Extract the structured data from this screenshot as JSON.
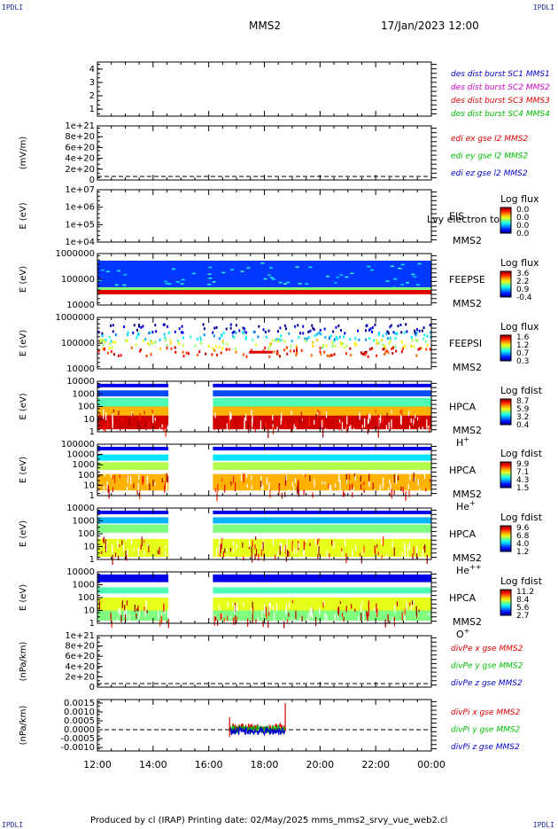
{
  "header": {
    "corner_label": "IPDLI",
    "spacecraft": "MMS2",
    "datetime": "17/Jan/2023 12:00"
  },
  "footer": {
    "text": "Produced by cl (IRAP)   Printing date: 02/May/2025   mms_mms2_srvy_vue_web2.cl"
  },
  "colors": {
    "blue": "#0000cc",
    "magenta": "#cc00cc",
    "red": "#dd0000",
    "green": "#00bb00"
  },
  "chart_data": [
    {
      "type": "line",
      "panel": "burst-flags",
      "ylabel": "",
      "yticks": [
        "1",
        "2",
        "3",
        "4"
      ],
      "legend": [
        {
          "text": "des dist burst SC1 MMS1",
          "color": "#0000cc"
        },
        {
          "text": "des dist burst SC2 MMS2",
          "color": "#cc00cc"
        },
        {
          "text": "des dist burst SC3 MMS3",
          "color": "#dd0000"
        },
        {
          "text": "des dist burst SC4 MMS4",
          "color": "#00bb00"
        }
      ]
    },
    {
      "type": "line",
      "panel": "edi-efield",
      "ylabel": "(mV/m)",
      "yticks": [
        "0",
        "2e+20",
        "4e+20",
        "6e+20",
        "8e+20",
        "1e+21"
      ],
      "dashed_zero": true,
      "legend": [
        {
          "text": "edi ex gse l2 MMS2",
          "color": "#dd0000"
        },
        {
          "text": "edi ey gse l2 MMS2",
          "color": "#00bb00"
        },
        {
          "text": "edi ez gse l2 MMS2",
          "color": "#0000cc"
        }
      ]
    },
    {
      "type": "heatmap",
      "panel": "eis",
      "ylabel": "E (eV)",
      "yticks": [
        "1e+04",
        "1e+05",
        "1e+06",
        "1e+07"
      ],
      "instrument": "EIS",
      "sc": "MMS2",
      "overlay_text": "Lvy electron tof",
      "colorbar_title": "Log flux",
      "colorbar_ticks": [
        "0.0",
        "0.0",
        "0.0",
        "0.0"
      ]
    },
    {
      "type": "heatmap",
      "panel": "feeps-electron",
      "ylabel": "E (eV)",
      "yticks": [
        "10000",
        "100000",
        "1000000"
      ],
      "instrument": "FEEPSE",
      "sc": "MMS2",
      "colorbar_title": "Log flux",
      "colorbar_ticks": [
        "3.6",
        "2.2",
        "0.9",
        "-0.4"
      ]
    },
    {
      "type": "heatmap",
      "panel": "feeps-ion",
      "ylabel": "E (eV)",
      "yticks": [
        "10000",
        "100000",
        "1000000"
      ],
      "instrument": "FEEPSI",
      "sc": "MMS2",
      "colorbar_title": "Log flux",
      "colorbar_ticks": [
        "1.6",
        "1.2",
        "0.7",
        "0.3"
      ]
    },
    {
      "type": "heatmap",
      "panel": "hpca-h",
      "ylabel": "E (eV)",
      "yticks": [
        "1",
        "10",
        "100",
        "1000",
        "10000"
      ],
      "instrument": "HPCA",
      "sc": "MMS2",
      "species": "H",
      "species_sup": "+",
      "colorbar_title": "Log fdist",
      "colorbar_ticks": [
        "8.7",
        "5.9",
        "3.2",
        "0.4"
      ]
    },
    {
      "type": "heatmap",
      "panel": "hpca-he",
      "ylabel": "E (eV)",
      "yticks": [
        "1",
        "10",
        "100",
        "1000",
        "10000",
        "100000"
      ],
      "instrument": "HPCA",
      "sc": "MMS2",
      "species": "He",
      "species_sup": "+",
      "colorbar_title": "Log fdist",
      "colorbar_ticks": [
        "9.9",
        "7.1",
        "4.3",
        "1.5"
      ]
    },
    {
      "type": "heatmap",
      "panel": "hpca-hepp",
      "ylabel": "E (eV)",
      "yticks": [
        "1",
        "10",
        "100",
        "1000",
        "10000"
      ],
      "instrument": "HPCA",
      "sc": "MMS2",
      "species": "He",
      "species_sup": "++",
      "colorbar_title": "Log fdist",
      "colorbar_ticks": [
        "9.6",
        "6.8",
        "4.0",
        "1.2"
      ]
    },
    {
      "type": "heatmap",
      "panel": "hpca-o",
      "ylabel": "E (eV)",
      "yticks": [
        "1",
        "10",
        "100",
        "1000",
        "10000"
      ],
      "instrument": "HPCA",
      "sc": "MMS2",
      "species": "O",
      "species_sup": "+",
      "colorbar_title": "Log fdist",
      "colorbar_ticks": [
        "11.2",
        "8.4",
        "5.6",
        "2.7"
      ]
    },
    {
      "type": "line",
      "panel": "div-pe",
      "ylabel": "(nPa/km)",
      "yticks": [
        "0",
        "2e+20",
        "4e+20",
        "6e+20",
        "8e+20",
        "1e+21"
      ],
      "dashed_zero": true,
      "legend": [
        {
          "text": "divPe x gse MMS2",
          "color": "#dd0000"
        },
        {
          "text": "divPe y gse MMS2",
          "color": "#00bb00"
        },
        {
          "text": "divPe z gse MMS2",
          "color": "#0000cc"
        }
      ]
    },
    {
      "type": "line",
      "panel": "div-pi",
      "ylabel": "(nPa/km)",
      "yticks": [
        "-0.0010",
        "-0.0005",
        "0.0000",
        "0.0005",
        "0.0010",
        "0.0015"
      ],
      "ylim": [
        -0.0012,
        0.0017
      ],
      "dashed_zero": true,
      "data_window_hours": [
        16.75,
        18.75
      ],
      "legend": [
        {
          "text": "divPi x gse MMS2",
          "color": "#dd0000"
        },
        {
          "text": "divPi y gse MMS2",
          "color": "#00bb00"
        },
        {
          "text": "divPi z gse MMS2",
          "color": "#0000cc"
        }
      ]
    }
  ],
  "x_axis": {
    "ticks": [
      "12:00",
      "14:00",
      "16:00",
      "18:00",
      "20:00",
      "22:00",
      "00:00"
    ],
    "range_hours": [
      12,
      24
    ]
  }
}
